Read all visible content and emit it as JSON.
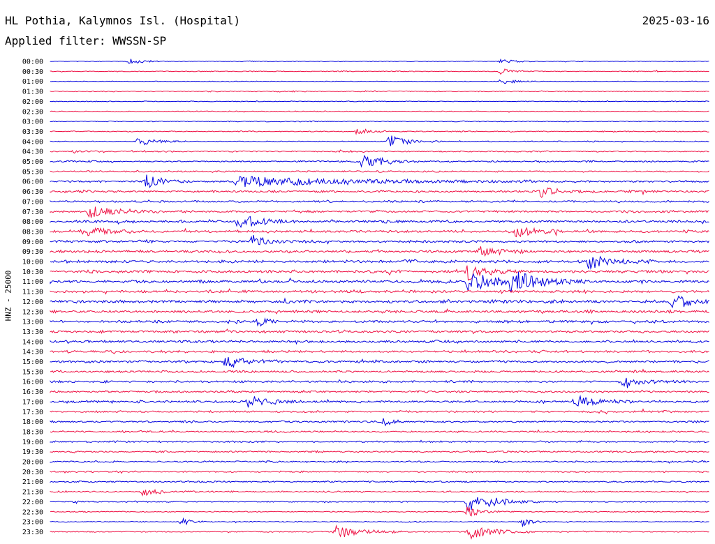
{
  "header": {
    "station": "HL Pothia, Kalymnos Isl. (Hospital)",
    "date": "2025-03-16",
    "filter": "Applied filter: WWSSN-SP"
  },
  "colors": {
    "odd_trace": "#0000dd",
    "even_trace": "#ee1144"
  },
  "chart_data": {
    "type": "line",
    "title": "HL Pothia, Kalymnos Isl. (Hospital)",
    "ylabel": "HNZ - 25000",
    "xlabel": "",
    "row_labels": [
      "00:00",
      "00:30",
      "01:00",
      "01:30",
      "02:00",
      "02:30",
      "03:00",
      "03:30",
      "04:00",
      "04:30",
      "05:00",
      "05:30",
      "06:00",
      "06:30",
      "07:00",
      "07:30",
      "08:00",
      "08:30",
      "09:00",
      "09:30",
      "10:00",
      "10:30",
      "11:00",
      "11:30",
      "12:00",
      "12:30",
      "13:00",
      "13:30",
      "14:00",
      "14:30",
      "15:00",
      "15:30",
      "16:00",
      "16:30",
      "17:00",
      "17:30",
      "18:00",
      "18:30",
      "19:00",
      "19:30",
      "20:00",
      "20:30",
      "21:00",
      "21:30",
      "22:00",
      "22:30",
      "23:00",
      "23:30"
    ],
    "row_minutes": 30,
    "series_colors": [
      "#0000dd",
      "#ee1144"
    ],
    "noise_level": [
      0.25,
      0.3,
      0.25,
      0.35,
      0.3,
      0.3,
      0.3,
      0.35,
      0.35,
      0.45,
      0.5,
      0.55,
      0.7,
      0.75,
      0.7,
      0.75,
      0.8,
      0.9,
      0.85,
      0.9,
      0.95,
      1.0,
      1.0,
      0.95,
      1.0,
      0.9,
      0.9,
      0.85,
      0.85,
      0.8,
      0.8,
      0.75,
      0.75,
      0.7,
      0.75,
      0.65,
      0.6,
      0.6,
      0.6,
      0.55,
      0.55,
      0.5,
      0.5,
      0.5,
      0.45,
      0.35,
      0.35,
      0.45
    ],
    "events": [
      {
        "row": 0,
        "minute": 3.6,
        "amp": 4,
        "dur": 0.6
      },
      {
        "row": 0,
        "minute": 20.5,
        "amp": 3,
        "dur": 0.6
      },
      {
        "row": 1,
        "minute": 20.5,
        "amp": 4,
        "dur": 0.6
      },
      {
        "row": 2,
        "minute": 20.5,
        "amp": 4,
        "dur": 0.6
      },
      {
        "row": 7,
        "minute": 14.0,
        "amp": 5,
        "dur": 0.5
      },
      {
        "row": 8,
        "minute": 4.0,
        "amp": 6,
        "dur": 0.8
      },
      {
        "row": 8,
        "minute": 15.4,
        "amp": 9,
        "dur": 0.8
      },
      {
        "row": 10,
        "minute": 14.2,
        "amp": 11,
        "dur": 0.9
      },
      {
        "row": 12,
        "minute": 4.4,
        "amp": 11,
        "dur": 0.6
      },
      {
        "row": 12,
        "minute": 8.5,
        "amp": 7,
        "dur": 4.5
      },
      {
        "row": 13,
        "minute": 22.3,
        "amp": 8,
        "dur": 0.8
      },
      {
        "row": 15,
        "minute": 1.8,
        "amp": 9,
        "dur": 1.2
      },
      {
        "row": 16,
        "minute": 8.5,
        "amp": 11,
        "dur": 0.9
      },
      {
        "row": 17,
        "minute": 1.5,
        "amp": 7,
        "dur": 0.9
      },
      {
        "row": 17,
        "minute": 21.2,
        "amp": 8,
        "dur": 0.8
      },
      {
        "row": 18,
        "minute": 9.2,
        "amp": 8,
        "dur": 0.7
      },
      {
        "row": 19,
        "minute": 19.6,
        "amp": 8,
        "dur": 0.8
      },
      {
        "row": 20,
        "minute": 24.5,
        "amp": 10,
        "dur": 1.0
      },
      {
        "row": 21,
        "minute": 19.0,
        "amp": 12,
        "dur": 0.9
      },
      {
        "row": 22,
        "minute": 19.0,
        "amp": 13,
        "dur": 1.3
      },
      {
        "row": 22,
        "minute": 21.0,
        "amp": 14,
        "dur": 1.2
      },
      {
        "row": 24,
        "minute": 28.3,
        "amp": 9,
        "dur": 0.9
      },
      {
        "row": 26,
        "minute": 9.5,
        "amp": 7,
        "dur": 0.4
      },
      {
        "row": 30,
        "minute": 8.0,
        "amp": 10,
        "dur": 0.9
      },
      {
        "row": 32,
        "minute": 26.0,
        "amp": 7,
        "dur": 0.8
      },
      {
        "row": 34,
        "minute": 9.0,
        "amp": 8,
        "dur": 0.9
      },
      {
        "row": 34,
        "minute": 23.9,
        "amp": 9,
        "dur": 0.9
      },
      {
        "row": 36,
        "minute": 15.2,
        "amp": 6,
        "dur": 0.4
      },
      {
        "row": 43,
        "minute": 4.2,
        "amp": 6,
        "dur": 0.6
      },
      {
        "row": 44,
        "minute": 19.0,
        "amp": 17,
        "dur": 1.1
      },
      {
        "row": 45,
        "minute": 19.0,
        "amp": 8,
        "dur": 0.6
      },
      {
        "row": 46,
        "minute": 6.0,
        "amp": 5,
        "dur": 0.4
      },
      {
        "row": 46,
        "minute": 21.5,
        "amp": 6,
        "dur": 0.4
      },
      {
        "row": 47,
        "minute": 13.0,
        "amp": 9,
        "dur": 1.0
      },
      {
        "row": 47,
        "minute": 19.0,
        "amp": 11,
        "dur": 1.0
      }
    ]
  }
}
